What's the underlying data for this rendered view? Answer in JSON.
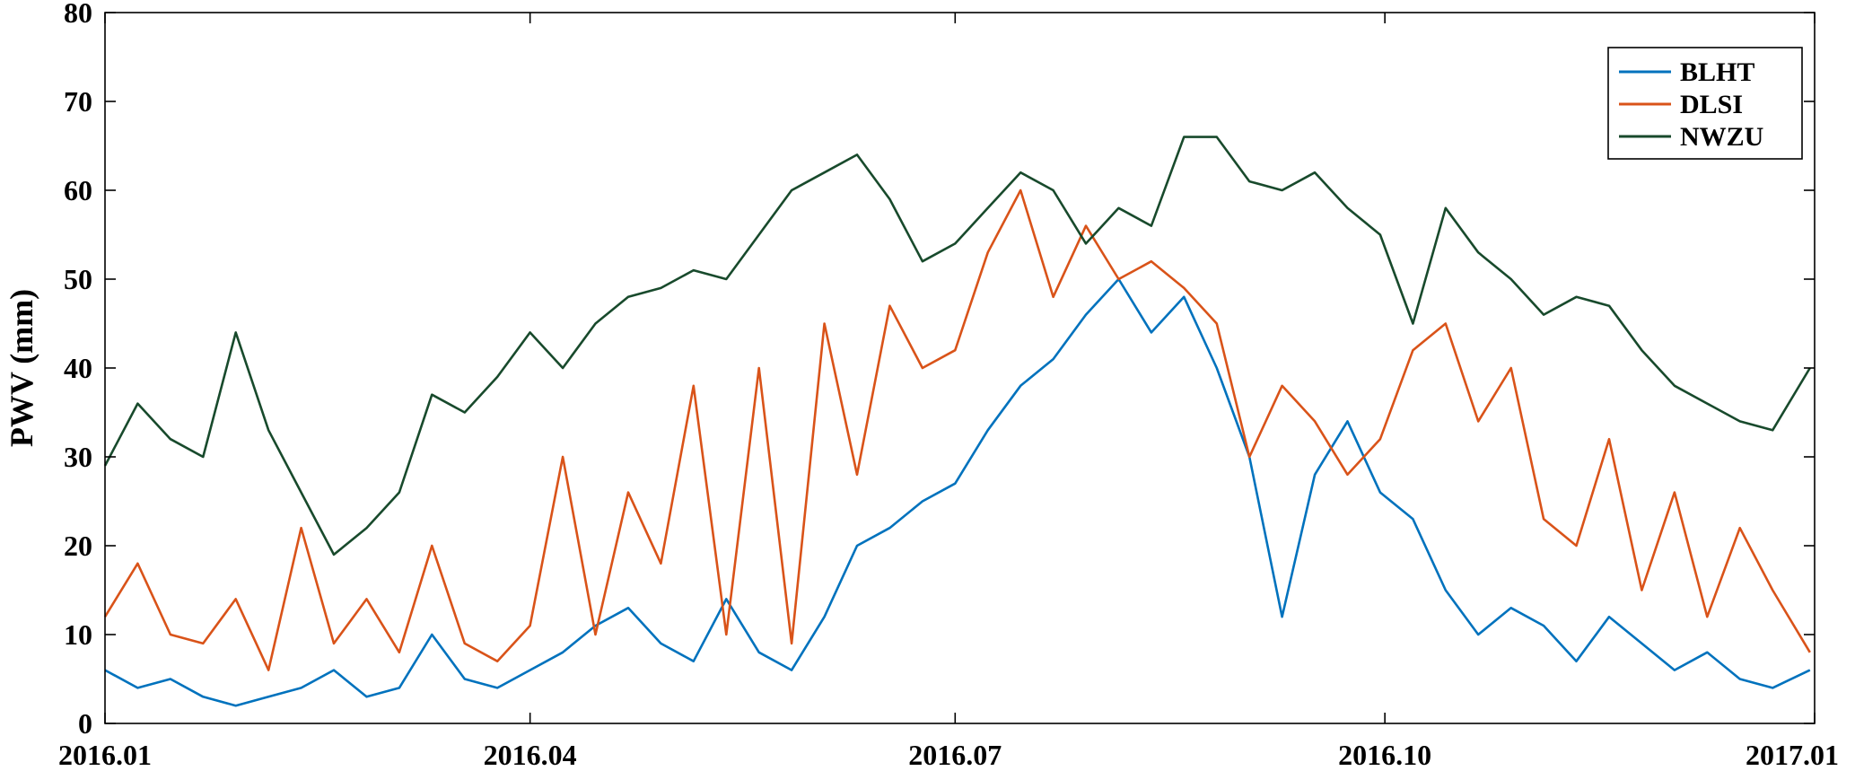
{
  "chart_data": {
    "type": "line",
    "title": "",
    "xlabel": "",
    "ylabel": "PWV (mm)",
    "xlim": [
      "2016-01-01",
      "2017-01-01"
    ],
    "ylim": [
      0,
      80
    ],
    "x_ticks": [
      "2016.01",
      "2016.04",
      "2016.07",
      "2016.10",
      "2017.01"
    ],
    "y_ticks": [
      "0",
      "10",
      "20",
      "30",
      "40",
      "50",
      "60",
      "70",
      "80"
    ],
    "grid": false,
    "legend_position": "top-right",
    "x": [
      "2016-01-01",
      "2016-01-08",
      "2016-01-15",
      "2016-01-22",
      "2016-01-29",
      "2016-02-05",
      "2016-02-12",
      "2016-02-19",
      "2016-02-26",
      "2016-03-04",
      "2016-03-11",
      "2016-03-18",
      "2016-03-25",
      "2016-04-01",
      "2016-04-08",
      "2016-04-15",
      "2016-04-22",
      "2016-04-29",
      "2016-05-06",
      "2016-05-13",
      "2016-05-20",
      "2016-05-27",
      "2016-06-03",
      "2016-06-10",
      "2016-06-17",
      "2016-06-24",
      "2016-07-01",
      "2016-07-08",
      "2016-07-15",
      "2016-07-22",
      "2016-07-29",
      "2016-08-05",
      "2016-08-12",
      "2016-08-19",
      "2016-08-26",
      "2016-09-02",
      "2016-09-09",
      "2016-09-16",
      "2016-09-23",
      "2016-09-30",
      "2016-10-07",
      "2016-10-14",
      "2016-10-21",
      "2016-10-28",
      "2016-11-04",
      "2016-11-11",
      "2016-11-18",
      "2016-11-25",
      "2016-12-02",
      "2016-12-09",
      "2016-12-16",
      "2016-12-23",
      "2016-12-31"
    ],
    "series": [
      {
        "name": "BLHT",
        "color": "#0072BD",
        "values": [
          6,
          4,
          5,
          3,
          2,
          3,
          4,
          6,
          3,
          4,
          10,
          5,
          4,
          6,
          8,
          11,
          13,
          9,
          7,
          14,
          8,
          6,
          12,
          20,
          22,
          25,
          27,
          33,
          38,
          41,
          46,
          50,
          44,
          48,
          40,
          30,
          12,
          28,
          34,
          26,
          23,
          15,
          10,
          13,
          11,
          7,
          12,
          9,
          6,
          8,
          5,
          4,
          6
        ]
      },
      {
        "name": "DLSI",
        "color": "#D95319",
        "values": [
          12,
          18,
          10,
          9,
          14,
          6,
          22,
          9,
          14,
          8,
          20,
          9,
          7,
          11,
          30,
          10,
          26,
          18,
          38,
          10,
          40,
          9,
          45,
          28,
          47,
          40,
          42,
          53,
          60,
          48,
          56,
          50,
          52,
          49,
          45,
          30,
          38,
          34,
          28,
          32,
          42,
          45,
          34,
          40,
          23,
          20,
          32,
          15,
          26,
          12,
          22,
          15,
          8
        ]
      },
      {
        "name": "NWZU",
        "color": "#184A2C",
        "values": [
          29,
          36,
          32,
          30,
          44,
          33,
          26,
          19,
          22,
          26,
          37,
          35,
          39,
          44,
          40,
          45,
          48,
          49,
          51,
          50,
          55,
          60,
          62,
          64,
          59,
          52,
          54,
          58,
          62,
          60,
          54,
          58,
          56,
          66,
          66,
          61,
          60,
          62,
          58,
          55,
          45,
          58,
          53,
          50,
          46,
          48,
          47,
          42,
          38,
          36,
          34,
          33,
          40
        ]
      }
    ]
  }
}
